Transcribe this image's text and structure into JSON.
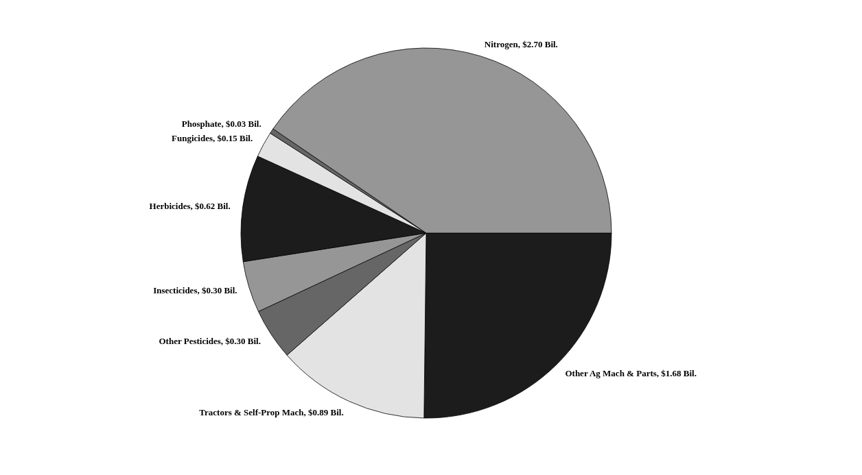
{
  "chart_data": {
    "type": "pie",
    "categories": [
      "Other Ag Mach & Parts",
      "Tractors & Self-Prop Mach",
      "Other Pesticides",
      "Insecticides",
      "Herbicides",
      "Fungicides",
      "Phosphate",
      "Nitrogen"
    ],
    "values": [
      1.68,
      0.89,
      0.3,
      0.3,
      0.62,
      0.15,
      0.03,
      2.7
    ],
    "value_labels": [
      "$1.68 Bil.",
      "$0.89 Bil.",
      "$0.30 Bil.",
      "$0.30 Bil.",
      "$0.62 Bil.",
      "$0.15 Bil.",
      "$0.03 Bil.",
      "$2.70 Bil."
    ],
    "colors": [
      "#1c1c1c",
      "#e3e3e3",
      "#666666",
      "#969696",
      "#1c1c1c",
      "#e3e3e3",
      "#666666",
      "#969696"
    ],
    "legend": false
  }
}
